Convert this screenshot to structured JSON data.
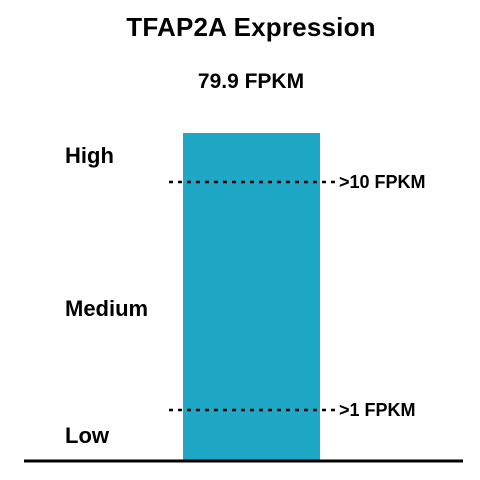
{
  "chart_data": {
    "type": "bar",
    "title": "TFAP2A Expression",
    "subtitle": "79.9 FPKM",
    "bar": {
      "value": 79.9,
      "unit": "FPKM",
      "color": "#1fa8c5"
    },
    "scale": "log",
    "thresholds": [
      {
        "value": 10,
        "label": ">10 FPKM"
      },
      {
        "value": 1,
        "label": ">1 FPKM"
      }
    ],
    "levels": [
      {
        "label": "High",
        "band": "above-10"
      },
      {
        "label": "Medium",
        "band": "1-to-10"
      },
      {
        "label": "Low",
        "band": "below-1"
      }
    ],
    "baseline_color": "#000000",
    "threshold_line_style": "dotted"
  }
}
